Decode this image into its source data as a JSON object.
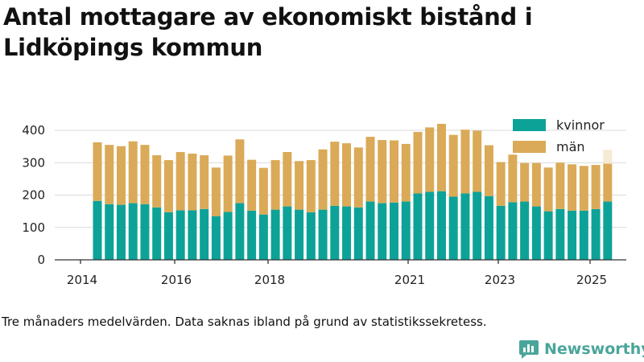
{
  "title": "Antal mottagare av ekonomiskt bistånd i Lidköpings kommun",
  "footnote": "Tre månaders medelvärden. Data saknas ibland på grund av statistikssekretess.",
  "brand": {
    "name": "Newsworthy",
    "color": "#4aa59a"
  },
  "chart_data": {
    "type": "bar",
    "stacked": true,
    "x_tick_labels": [
      "2014",
      "2016",
      "2018",
      "2021",
      "2023",
      "2025"
    ],
    "ylim": [
      0,
      400
    ],
    "y_ticks": [
      0,
      100,
      200,
      300,
      400
    ],
    "grid": true,
    "legend_position": "top-right",
    "series": [
      {
        "name": "kvinnor",
        "color": "#0da298",
        "values": [
          182,
          172,
          170,
          175,
          172,
          162,
          147,
          153,
          153,
          157,
          135,
          148,
          175,
          152,
          140,
          155,
          165,
          155,
          147,
          155,
          167,
          165,
          162,
          180,
          175,
          177,
          180,
          205,
          210,
          212,
          195,
          205,
          210,
          197,
          167,
          178,
          180,
          165,
          150,
          157,
          152,
          152,
          157,
          180
        ]
      },
      {
        "name": "män",
        "color": "#daaa58",
        "values": [
          181,
          183,
          181,
          191,
          183,
          161,
          161,
          180,
          175,
          166,
          150,
          174,
          197,
          157,
          144,
          153,
          168,
          150,
          161,
          186,
          198,
          195,
          185,
          200,
          195,
          192,
          178,
          190,
          199,
          208,
          191,
          197,
          189,
          157,
          135,
          147,
          119,
          134,
          135,
          143,
          143,
          138,
          136,
          117
        ]
      }
    ],
    "faded_last_total": 340
  }
}
